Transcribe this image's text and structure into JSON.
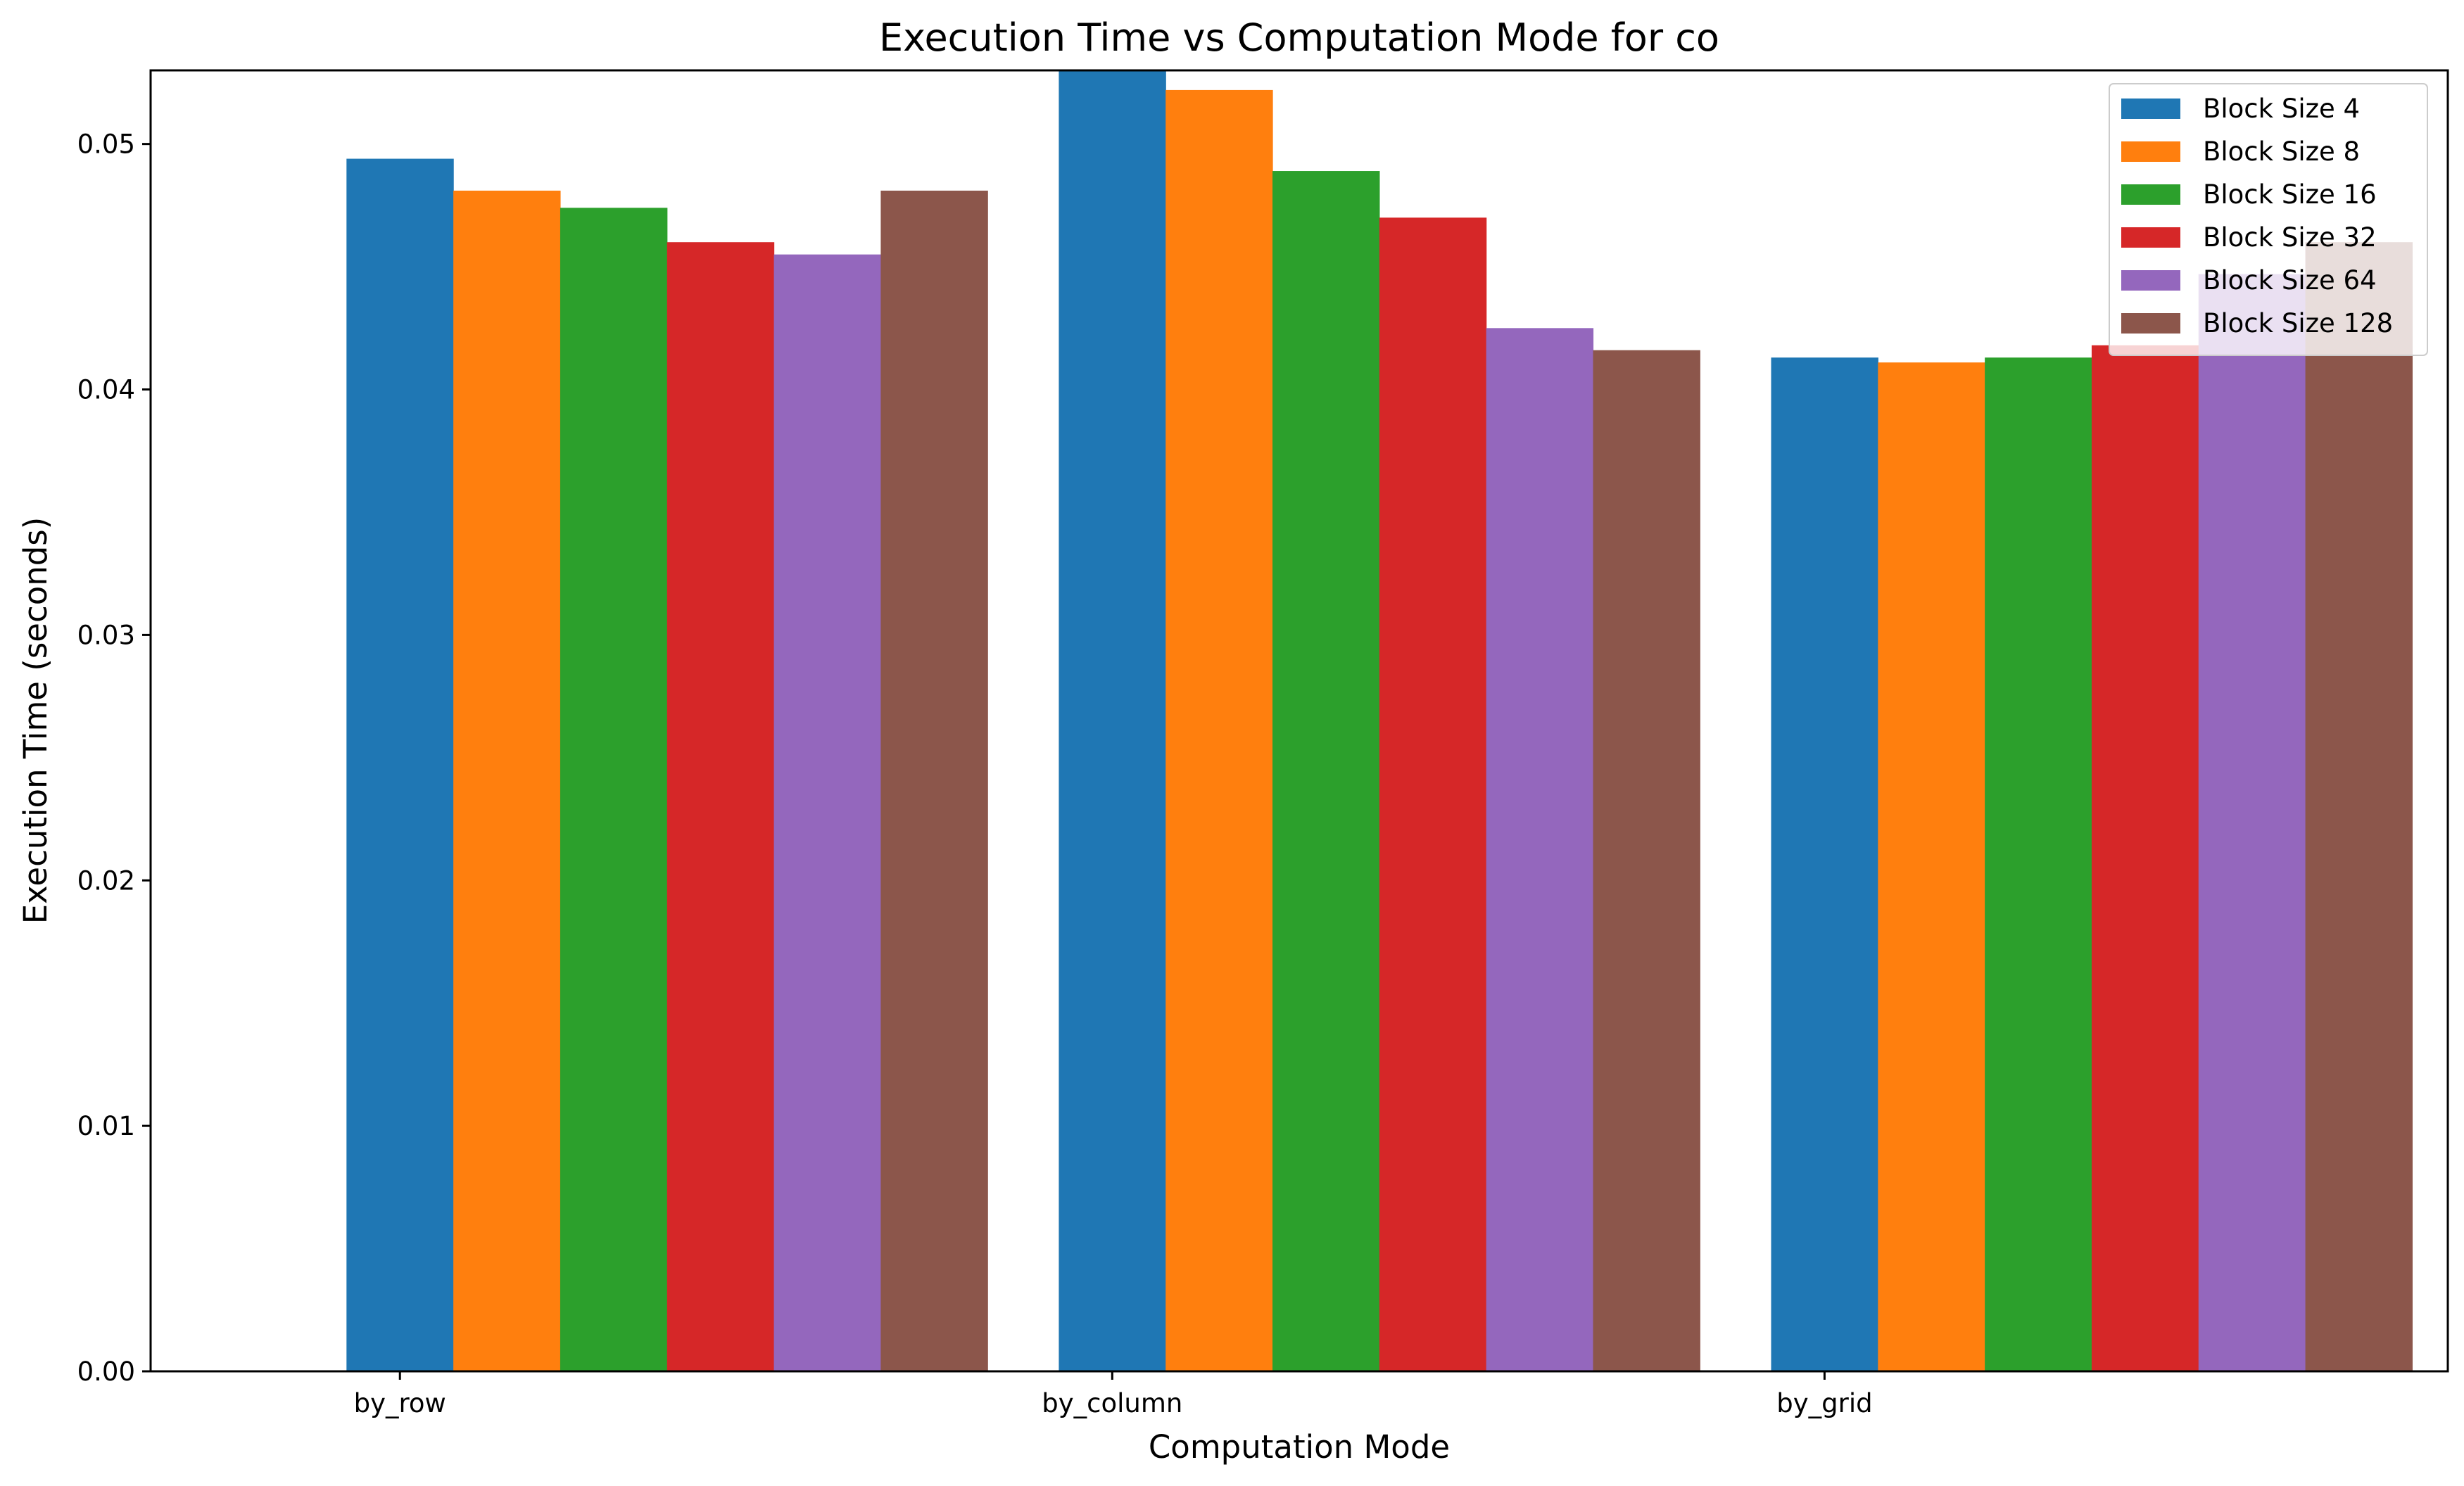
{
  "chart_data": {
    "type": "bar",
    "title": "Execution Time vs Computation Mode for co",
    "xlabel": "Computation Mode",
    "ylabel": "Execution Time (seconds)",
    "categories": [
      "by_row",
      "by_column",
      "by_grid"
    ],
    "ylim": [
      0,
      0.053
    ],
    "yticks": [
      0.0,
      0.01,
      0.02,
      0.03,
      0.04,
      0.05
    ],
    "ytick_labels": [
      "0.00",
      "0.01",
      "0.02",
      "0.03",
      "0.04",
      "0.05"
    ],
    "grid": false,
    "legend_position": "top-right",
    "series": [
      {
        "name": "Block Size 4",
        "color": "#1f77b4",
        "values": [
          0.0494,
          0.0531,
          0.0413
        ]
      },
      {
        "name": "Block Size 8",
        "color": "#ff7f0e",
        "values": [
          0.0481,
          0.0522,
          0.0411
        ]
      },
      {
        "name": "Block Size 16",
        "color": "#2ca02c",
        "values": [
          0.0474,
          0.0489,
          0.0413
        ]
      },
      {
        "name": "Block Size 32",
        "color": "#d62728",
        "values": [
          0.046,
          0.047,
          0.0418
        ]
      },
      {
        "name": "Block Size 64",
        "color": "#9467bd",
        "values": [
          0.0455,
          0.0425,
          0.0447
        ]
      },
      {
        "name": "Block Size 128",
        "color": "#8c564b",
        "values": [
          0.0481,
          0.0416,
          0.046
        ]
      }
    ]
  }
}
